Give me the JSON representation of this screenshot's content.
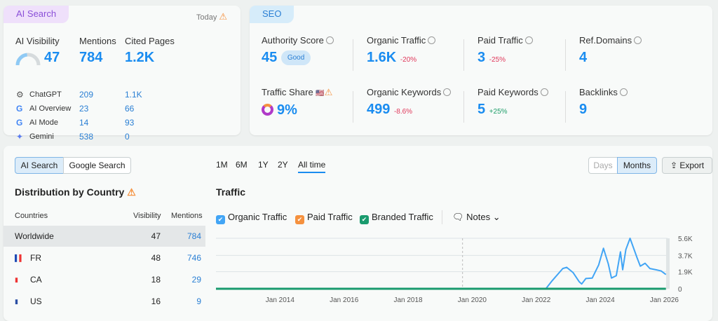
{
  "ai_card": {
    "tag": "AI Search",
    "today": "Today",
    "cols": [
      "AI Visibility",
      "Mentions",
      "Cited Pages"
    ],
    "visibility": "47",
    "visibility_level": 47,
    "mentions": "784",
    "cited": "1.2K",
    "rows": [
      {
        "name": "ChatGPT",
        "icon": "chatgpt-icon",
        "mentions": "209",
        "cited": "1.1K"
      },
      {
        "name": "AI Overview",
        "icon": "google-icon",
        "mentions": "23",
        "cited": "66"
      },
      {
        "name": "AI Mode",
        "icon": "google-icon",
        "mentions": "14",
        "cited": "93"
      },
      {
        "name": "Gemini",
        "icon": "gemini-icon",
        "mentions": "538",
        "cited": "0"
      }
    ]
  },
  "seo_card": {
    "tag": "SEO",
    "metrics": [
      {
        "label": "Authority Score",
        "value": "45",
        "badge": "Good"
      },
      {
        "label": "Organic Traffic",
        "value": "1.6K",
        "change": "-20%"
      },
      {
        "label": "Paid Traffic",
        "value": "3",
        "change": "-25%"
      },
      {
        "label": "Ref.Domains",
        "value": "4"
      },
      {
        "label": "Traffic Share",
        "value": "9%"
      },
      {
        "label": "Organic Keywords",
        "value": "499",
        "change": "-8.6%"
      },
      {
        "label": "Paid Keywords",
        "value": "5",
        "change": "+25%"
      },
      {
        "label": "Backlinks",
        "value": "9"
      }
    ]
  },
  "toggle": {
    "ai": "AI Search",
    "google": "Google Search"
  },
  "ranges": [
    "1M",
    "6M",
    "1Y",
    "2Y",
    "All time"
  ],
  "active_range": "All time",
  "granularity": {
    "days": "Days",
    "months": "Months"
  },
  "export": "Export",
  "distribution": {
    "title": "Distribution by Country",
    "headers": [
      "Countries",
      "Visibility",
      "Mentions"
    ],
    "rows": [
      {
        "country": "Worldwide",
        "visibility": "47",
        "mentions": "784"
      },
      {
        "country": "FR",
        "visibility": "48",
        "mentions": "746"
      },
      {
        "country": "CA",
        "visibility": "18",
        "mentions": "29"
      },
      {
        "country": "US",
        "visibility": "16",
        "mentions": "9"
      }
    ]
  },
  "traffic": {
    "title": "Traffic",
    "legend": [
      "Organic Traffic",
      "Paid Traffic",
      "Branded Traffic"
    ],
    "notes": "Notes"
  },
  "colors": {
    "organic": "#42a5f5",
    "paid": "#f5913e",
    "branded": "#1a9b6e",
    "accent": "#1a8cf0"
  },
  "chart_data": {
    "type": "line",
    "x_ticks": [
      "Jan 2014",
      "Jan 2016",
      "Jan 2018",
      "Jan 2020",
      "Jan 2022",
      "Jan 2024",
      "Jan 2026"
    ],
    "y_ticks": [
      "0",
      "1.9K",
      "3.7K",
      "5.6K"
    ],
    "ylim": [
      0,
      5600
    ],
    "xlim": [
      2012,
      2026.1
    ],
    "series": [
      {
        "name": "Organic Traffic",
        "x": [
          2012,
          2022.3,
          2022.5,
          2022.83,
          2022.95,
          2023.15,
          2023.34,
          2023.42,
          2023.55,
          2023.75,
          2023.95,
          2024.1,
          2024.25,
          2024.35,
          2024.5,
          2024.63,
          2024.7,
          2024.8,
          2024.93,
          2025.15,
          2025.25,
          2025.4,
          2025.55,
          2025.75,
          2025.9,
          2026.05
        ],
        "y": [
          0,
          0,
          900,
          2245,
          2380,
          1800,
          790,
          530,
          1140,
          1190,
          2640,
          4490,
          2770,
          1190,
          1450,
          4090,
          2110,
          4360,
          5600,
          3430,
          2510,
          2830,
          2245,
          2100,
          1980,
          1580
        ]
      },
      {
        "name": "Branded Traffic",
        "x": [
          2012,
          2026.05
        ],
        "y": [
          0,
          0
        ]
      }
    ]
  }
}
